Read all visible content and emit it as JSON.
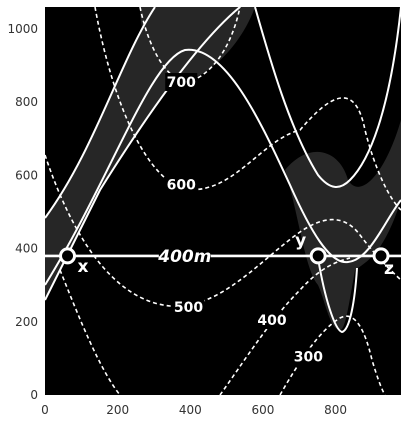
{
  "chart_data": {
    "type": "contour-map",
    "title": "",
    "xlabel": "",
    "ylabel": "",
    "xlim": [
      0,
      980
    ],
    "ylim": [
      0,
      1060
    ],
    "x_ticks": [
      0,
      200,
      400,
      600,
      800
    ],
    "y_ticks": [
      0,
      200,
      400,
      600,
      800,
      1000
    ],
    "grid": false,
    "colors": {
      "background": "#000000",
      "shaded_band": "#262626",
      "lines": "#ffffff",
      "axes_text": "#333333"
    },
    "contour_labels": [
      {
        "text": "700",
        "x": 375,
        "y": 855
      },
      {
        "text": "600",
        "x": 375,
        "y": 575
      },
      {
        "text": "500",
        "x": 395,
        "y": 240
      },
      {
        "text": "400",
        "x": 625,
        "y": 205
      },
      {
        "text": "300",
        "x": 725,
        "y": 105
      }
    ],
    "section_line": {
      "label": "400m",
      "y": 380,
      "x_start": 0,
      "x_end": 980,
      "label_x": 385
    },
    "points": [
      {
        "label": "x",
        "x": 62,
        "y": 380
      },
      {
        "label": "y",
        "x": 752,
        "y": 380
      },
      {
        "label": "z",
        "x": 925,
        "y": 380
      }
    ]
  }
}
